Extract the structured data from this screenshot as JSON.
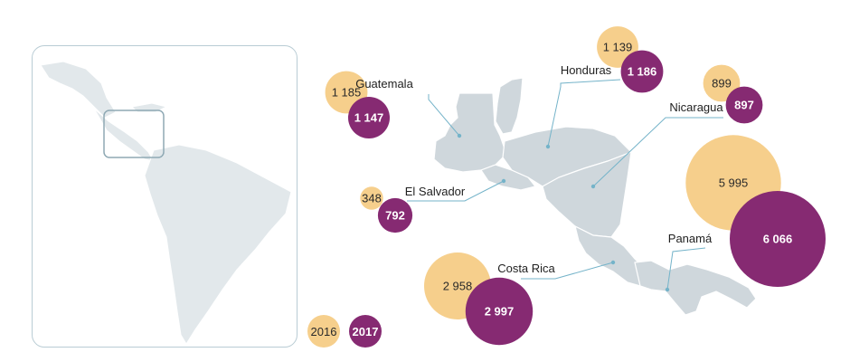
{
  "colors": {
    "year_2016": "#f6cf8c",
    "year_2017": "#862a72",
    "land": "#cfd7dc",
    "land_inset": "#e2e8eb",
    "border": "#ffffff",
    "leader": "#74b3c9",
    "frame": "#b9ccd4"
  },
  "legend": {
    "year_2016": "2016",
    "year_2017": "2017"
  },
  "countries": [
    {
      "key": "guatemala",
      "name": "Guatemala",
      "value_2016": 1185,
      "value_2016_label": "1 185",
      "value_2017": 1147,
      "value_2017_label": "1 147"
    },
    {
      "key": "honduras",
      "name": "Honduras",
      "value_2016": 1139,
      "value_2016_label": "1 139",
      "value_2017": 1186,
      "value_2017_label": "1 186"
    },
    {
      "key": "nicaragua",
      "name": "Nicaragua",
      "value_2016": 899,
      "value_2016_label": "899",
      "value_2017": 897,
      "value_2017_label": "897"
    },
    {
      "key": "el-salvador",
      "name": "El Salvador",
      "value_2016": 348,
      "value_2016_label": "348",
      "value_2017": 792,
      "value_2017_label": "792"
    },
    {
      "key": "costa-rica",
      "name": "Costa Rica",
      "value_2016": 2958,
      "value_2016_label": "2 958",
      "value_2017": 2997,
      "value_2017_label": "2 997"
    },
    {
      "key": "panama",
      "name": "Panamá",
      "value_2016": 5995,
      "value_2016_label": "5 995",
      "value_2017": 6066,
      "value_2017_label": "6 066"
    }
  ]
}
